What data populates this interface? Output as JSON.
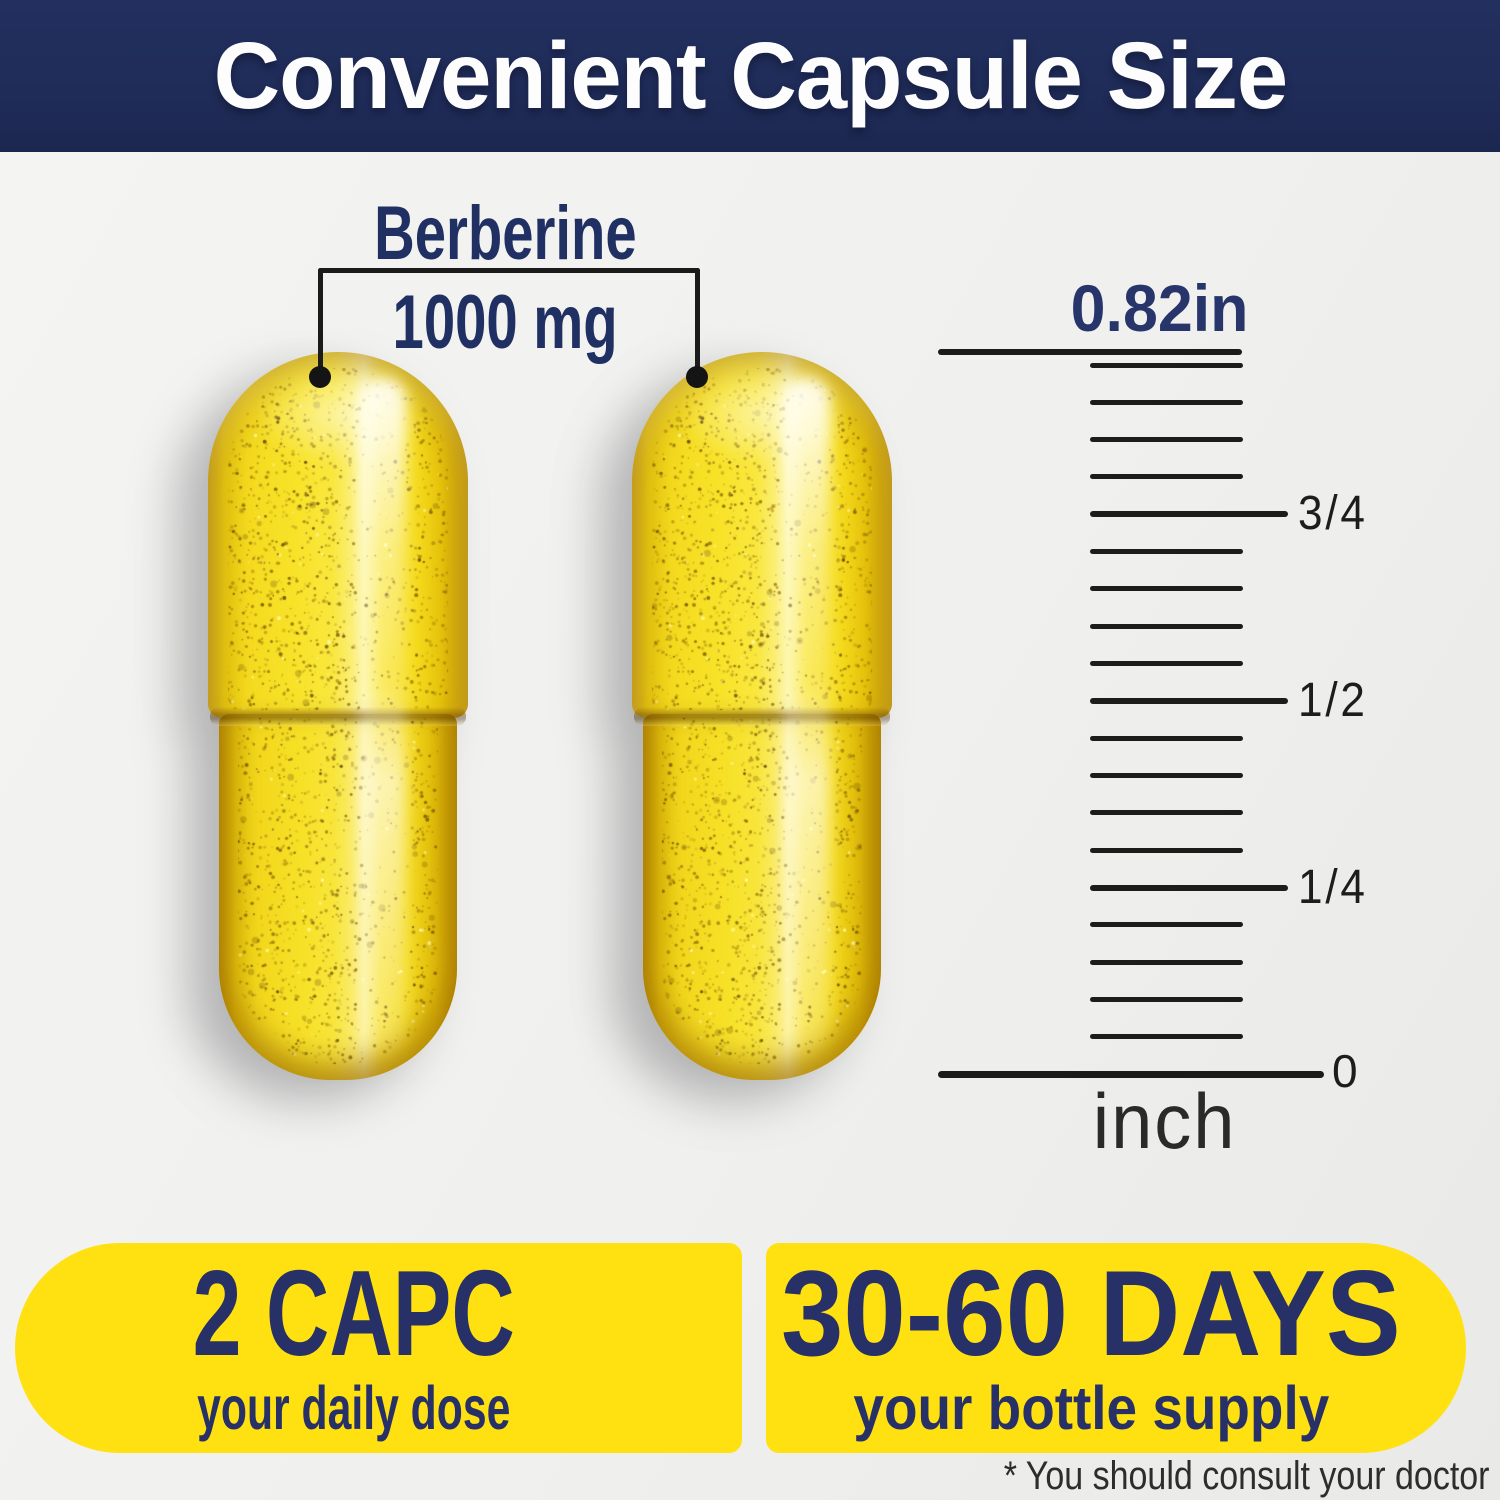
{
  "header": {
    "title": "Convenient Capsule Size"
  },
  "callout": {
    "ingredient": "Berberine",
    "amount": "1000 mg"
  },
  "capsules": {
    "count": 2,
    "color_hex": "#f8e126"
  },
  "ruler": {
    "top_label": "0.82in",
    "zero_label": "0",
    "unit_label": "inch",
    "ticks": [
      {
        "type": "short",
        "label": ""
      },
      {
        "type": "short",
        "label": ""
      },
      {
        "type": "short",
        "label": ""
      },
      {
        "type": "short",
        "label": ""
      },
      {
        "type": "major",
        "label": "3/4"
      },
      {
        "type": "short",
        "label": ""
      },
      {
        "type": "short",
        "label": ""
      },
      {
        "type": "short",
        "label": ""
      },
      {
        "type": "short",
        "label": ""
      },
      {
        "type": "major",
        "label": "1/2"
      },
      {
        "type": "short",
        "label": ""
      },
      {
        "type": "short",
        "label": ""
      },
      {
        "type": "short",
        "label": ""
      },
      {
        "type": "short",
        "label": ""
      },
      {
        "type": "major",
        "label": "1/4"
      },
      {
        "type": "short",
        "label": ""
      },
      {
        "type": "short",
        "label": ""
      },
      {
        "type": "short",
        "label": ""
      },
      {
        "type": "short",
        "label": ""
      }
    ]
  },
  "badges": {
    "daily_dose": {
      "title": "2 CAPC",
      "subtitle": "your daily dose"
    },
    "bottle_supply": {
      "title": "30-60 DAYS",
      "subtitle": "your bottle supply"
    }
  },
  "footnote": "* You should consult your doctor",
  "colors": {
    "header_navy": "#1f2b57",
    "text_navy": "#203063",
    "badge_navy": "#273168",
    "yellow": "#ffe112",
    "ink": "#1c1c1a",
    "background": "#f1f1ef",
    "capsule_yellow": "#f8e126"
  }
}
